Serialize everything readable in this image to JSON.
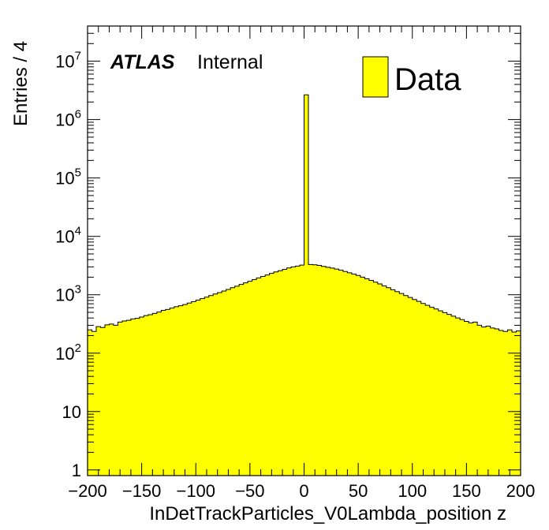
{
  "chart_data": {
    "type": "bar",
    "xlabel": "InDetTrackParticles_V0Lambda_position z",
    "ylabel": "Entries / 4",
    "xlim": [
      -200,
      200
    ],
    "ylim": [
      0.8,
      40000000
    ],
    "yscale": "log",
    "bin_width": 4,
    "x_ticks": [
      -200,
      -150,
      -100,
      -50,
      0,
      50,
      100,
      150,
      200
    ],
    "x_tick_labels": [
      "−200",
      "−150",
      "−100",
      "−50",
      "0",
      "50",
      "100",
      "150",
      "200"
    ],
    "y_ticks": [
      1,
      10,
      100,
      1000,
      10000,
      100000,
      1000000,
      10000000
    ],
    "y_tick_labels": [
      {
        "base": "1",
        "exp": ""
      },
      {
        "base": "10",
        "exp": ""
      },
      {
        "base": "10",
        "exp": "2"
      },
      {
        "base": "10",
        "exp": "3"
      },
      {
        "base": "10",
        "exp": "4"
      },
      {
        "base": "10",
        "exp": "5"
      },
      {
        "base": "10",
        "exp": "6"
      },
      {
        "base": "10",
        "exp": "7"
      }
    ],
    "atlas_label": "ATLAS",
    "atlas_status": "Internal",
    "legend": {
      "entries": [
        "Data"
      ],
      "placement": "top-right"
    },
    "fill_color": "#ffff00",
    "line_color": "#000000",
    "series": [
      {
        "name": "Data",
        "bin_low_edges": [
          -200,
          -196,
          -192,
          -188,
          -184,
          -180,
          -176,
          -172,
          -168,
          -164,
          -160,
          -156,
          -152,
          -148,
          -144,
          -140,
          -136,
          -132,
          -128,
          -124,
          -120,
          -116,
          -112,
          -108,
          -104,
          -100,
          -96,
          -92,
          -88,
          -84,
          -80,
          -76,
          -72,
          -68,
          -64,
          -60,
          -56,
          -52,
          -48,
          -44,
          -40,
          -36,
          -32,
          -28,
          -24,
          -20,
          -16,
          -12,
          -8,
          -4,
          0,
          4,
          8,
          12,
          16,
          20,
          24,
          28,
          32,
          36,
          40,
          44,
          48,
          52,
          56,
          60,
          64,
          68,
          72,
          76,
          80,
          84,
          88,
          92,
          96,
          100,
          104,
          108,
          112,
          116,
          120,
          124,
          128,
          132,
          136,
          140,
          144,
          148,
          152,
          156,
          160,
          164,
          168,
          172,
          176,
          180,
          184,
          188,
          192,
          196
        ],
        "values": [
          250,
          235,
          285,
          275,
          305,
          315,
          300,
          340,
          355,
          365,
          385,
          395,
          415,
          440,
          455,
          480,
          505,
          540,
          560,
          590,
          625,
          650,
          680,
          720,
          760,
          810,
          860,
          910,
          970,
          1030,
          1090,
          1160,
          1230,
          1320,
          1400,
          1500,
          1600,
          1700,
          1820,
          1940,
          2060,
          2180,
          2320,
          2460,
          2580,
          2720,
          2880,
          3000,
          3100,
          3220,
          2650000,
          3300,
          3260,
          3180,
          3060,
          2950,
          2860,
          2760,
          2640,
          2500,
          2380,
          2260,
          2140,
          2000,
          1880,
          1760,
          1640,
          1530,
          1420,
          1320,
          1220,
          1130,
          1050,
          970,
          900,
          830,
          770,
          710,
          660,
          610,
          570,
          530,
          495,
          460,
          430,
          400,
          375,
          350,
          330,
          340,
          300,
          280,
          290,
          270,
          260,
          245,
          235,
          250,
          230,
          240
        ]
      }
    ]
  }
}
